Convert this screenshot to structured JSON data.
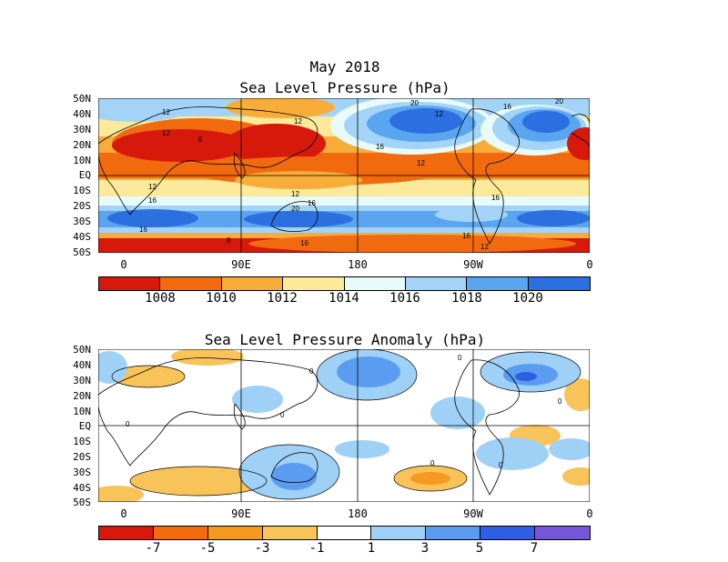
{
  "title_main": "May 2018",
  "panels": [
    {
      "title": "Sea Level Pressure (hPa)",
      "lat_labels": [
        "50N",
        "40N",
        "30N",
        "20N",
        "10N",
        "EQ",
        "10S",
        "20S",
        "30S",
        "40S",
        "50S"
      ],
      "lon_labels": [
        "0",
        "90E",
        "180",
        "90W",
        "0"
      ],
      "contour_labels": [
        "12",
        "20",
        "12",
        "12",
        "16",
        "12",
        "12",
        "16",
        "12",
        "16",
        "16",
        "8",
        "12",
        "20",
        "16",
        "8",
        "16",
        "16",
        "20",
        "12",
        "16"
      ],
      "colorbar": {
        "colors": [
          "#d7190c",
          "#f26a0e",
          "#f8ad3a",
          "#fde99a",
          "#e8fbfb",
          "#a3d4f7",
          "#5aa5ef",
          "#2c6fe0"
        ],
        "labels": [
          "1008",
          "1010",
          "1012",
          "1014",
          "1016",
          "1018",
          "1020"
        ]
      }
    },
    {
      "title": "Sea Level Pressure Anomaly (hPa)",
      "lat_labels": [
        "50N",
        "40N",
        "30N",
        "20N",
        "10N",
        "EQ",
        "10S",
        "20S",
        "30S",
        "40S",
        "50S"
      ],
      "lon_labels": [
        "0",
        "90E",
        "180",
        "90W",
        "0"
      ],
      "contour_labels": [
        "0",
        "0",
        "0",
        "0",
        "0",
        "0",
        "0"
      ],
      "colorbar": {
        "colors": [
          "#d7190c",
          "#f26a0e",
          "#f69a1f",
          "#f8c45a",
          "#ffffff",
          "#9fd0f5",
          "#5a9cf0",
          "#2e5fe3",
          "#7755d8"
        ],
        "labels": [
          "-7",
          "-5",
          "-3",
          "-1",
          "1",
          "3",
          "5",
          "7"
        ]
      }
    }
  ]
}
